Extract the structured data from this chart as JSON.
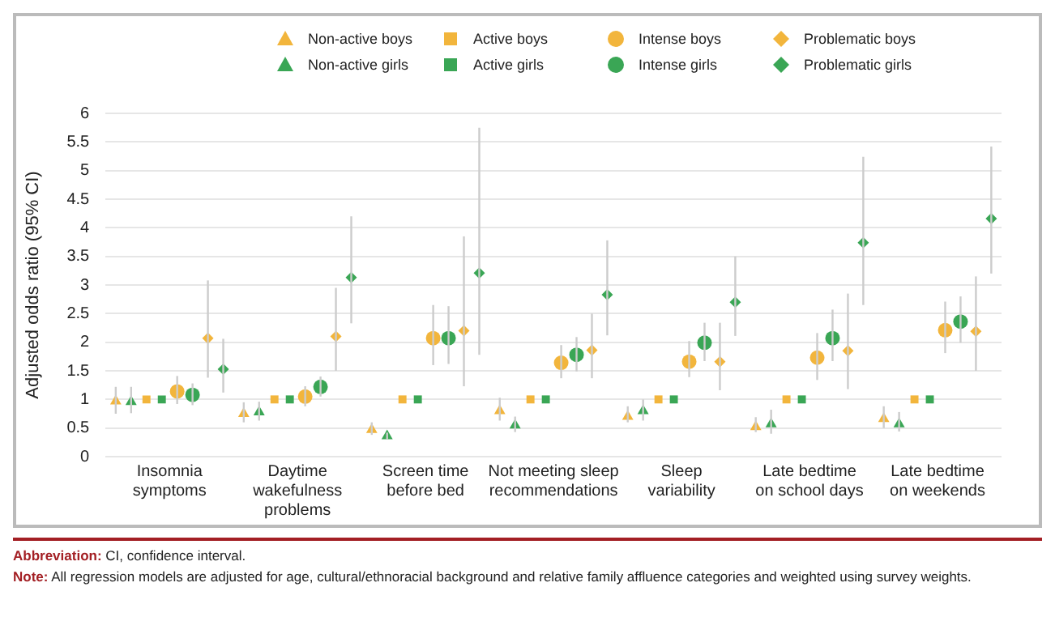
{
  "chart_data": {
    "type": "scatter",
    "ylabel": "Adjusted odds ratio (95% CI)",
    "categories": [
      "Insomnia\nsymptoms",
      "Daytime\nwakefulness\nproblems",
      "Screen time\nbefore bed",
      "Not meeting sleep\nrecommendations",
      "Sleep\nvariability",
      "Late bedtime\non school days",
      "Late bedtime\non weekends"
    ],
    "ylim": [
      0,
      6
    ],
    "yticks": [
      0,
      0.5,
      1,
      1.5,
      2,
      2.5,
      3,
      3.5,
      4,
      4.5,
      5,
      5.5,
      6
    ],
    "grid": "y",
    "legend": "top",
    "series": [
      {
        "name": "Non-active boys",
        "color": "#f2b53c",
        "marker": "triangle",
        "values": [
          0.97,
          0.75,
          0.47,
          0.8,
          0.7,
          0.52,
          0.66
        ],
        "errors": [
          [
            0.75,
            1.22
          ],
          [
            0.6,
            0.95
          ],
          [
            0.38,
            0.6
          ],
          [
            0.63,
            1.03
          ],
          [
            0.6,
            0.88
          ],
          [
            0.43,
            0.69
          ],
          [
            0.5,
            0.88
          ]
        ]
      },
      {
        "name": "Non-active girls",
        "color": "#3aa655",
        "marker": "triangle",
        "values": [
          0.96,
          0.78,
          0.36,
          0.55,
          0.8,
          0.57,
          0.57
        ],
        "errors": [
          [
            0.76,
            1.22
          ],
          [
            0.63,
            0.96
          ],
          [
            0.3,
            0.42
          ],
          [
            0.43,
            0.7
          ],
          [
            0.63,
            1.0
          ],
          [
            0.4,
            0.82
          ],
          [
            0.44,
            0.78
          ]
        ]
      },
      {
        "name": "Active boys",
        "color": "#f2b53c",
        "marker": "square",
        "values": [
          1,
          1,
          1,
          1,
          1,
          1,
          1
        ]
      },
      {
        "name": "Active girls",
        "color": "#3aa655",
        "marker": "square",
        "values": [
          1,
          1,
          1,
          1,
          1,
          1,
          1
        ]
      },
      {
        "name": "Intense boys",
        "color": "#f2b53c",
        "marker": "circle",
        "values": [
          1.14,
          1.05,
          2.07,
          1.64,
          1.66,
          1.73,
          2.21
        ],
        "errors": [
          [
            0.92,
            1.41
          ],
          [
            0.88,
            1.23
          ],
          [
            1.6,
            2.65
          ],
          [
            1.37,
            1.95
          ],
          [
            1.39,
            2.02
          ],
          [
            1.34,
            2.16
          ],
          [
            1.81,
            2.71
          ]
        ]
      },
      {
        "name": "Intense girls",
        "color": "#3aa655",
        "marker": "circle",
        "values": [
          1.08,
          1.22,
          2.07,
          1.78,
          1.99,
          2.07,
          2.36
        ],
        "errors": [
          [
            0.9,
            1.28
          ],
          [
            1.05,
            1.4
          ],
          [
            1.62,
            2.63
          ],
          [
            1.49,
            2.09
          ],
          [
            1.67,
            2.34
          ],
          [
            1.67,
            2.57
          ],
          [
            1.99,
            2.8
          ]
        ]
      },
      {
        "name": "Problematic boys",
        "color": "#f2b53c",
        "marker": "diamond",
        "values": [
          2.07,
          2.1,
          2.2,
          1.86,
          1.66,
          1.85,
          2.19
        ],
        "errors": [
          [
            1.38,
            3.08
          ],
          [
            1.5,
            2.95
          ],
          [
            1.23,
            3.85
          ],
          [
            1.37,
            2.5
          ],
          [
            1.16,
            2.34
          ],
          [
            1.18,
            2.85
          ],
          [
            1.5,
            3.15
          ]
        ]
      },
      {
        "name": "Problematic girls",
        "color": "#3aa655",
        "marker": "diamond",
        "values": [
          1.53,
          3.13,
          3.21,
          2.83,
          2.7,
          3.74,
          4.16
        ],
        "errors": [
          [
            1.12,
            2.06
          ],
          [
            2.33,
            4.2
          ],
          [
            1.78,
            5.75
          ],
          [
            2.12,
            3.78
          ],
          [
            2.11,
            3.5
          ],
          [
            2.65,
            5.24
          ],
          [
            3.2,
            5.42
          ]
        ]
      }
    ],
    "annotations": [
      "Abbreviation: CI, confidence interval.",
      "Note: All regression models are adjusted for age, cultural/ethnoracial background and relative family affluence categories and weighted using survey weights."
    ]
  }
}
